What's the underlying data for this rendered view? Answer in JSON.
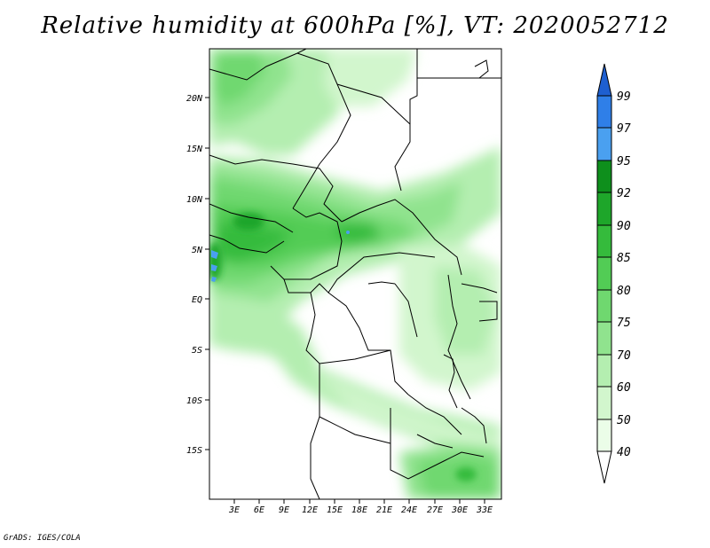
{
  "title": "Relative humidity at 600hPa [%], VT: 2020052712",
  "credit": "GrADS: IGES/COLA",
  "map": {
    "lon_range": [
      0,
      35
    ],
    "lat_range": [
      -20,
      25
    ],
    "lat_ticks": [
      "20N",
      "15N",
      "10N",
      "5N",
      "EQ",
      "5S",
      "10S",
      "15S"
    ],
    "lon_ticks": [
      "3E",
      "6E",
      "9E",
      "12E",
      "15E",
      "18E",
      "21E",
      "24E",
      "27E",
      "30E",
      "33E"
    ]
  },
  "colorbar": {
    "levels": [
      "99",
      "97",
      "95",
      "92",
      "90",
      "85",
      "80",
      "75",
      "70",
      "60",
      "50",
      "40"
    ],
    "colors": [
      "#1e5fd0",
      "#2f7fe8",
      "#4aa0f0",
      "#0e8f1c",
      "#1ea62a",
      "#35bb3c",
      "#52cc55",
      "#6fd86f",
      "#90e38e",
      "#b4eeb0",
      "#d2f6cd",
      "#ebfde8"
    ]
  }
}
